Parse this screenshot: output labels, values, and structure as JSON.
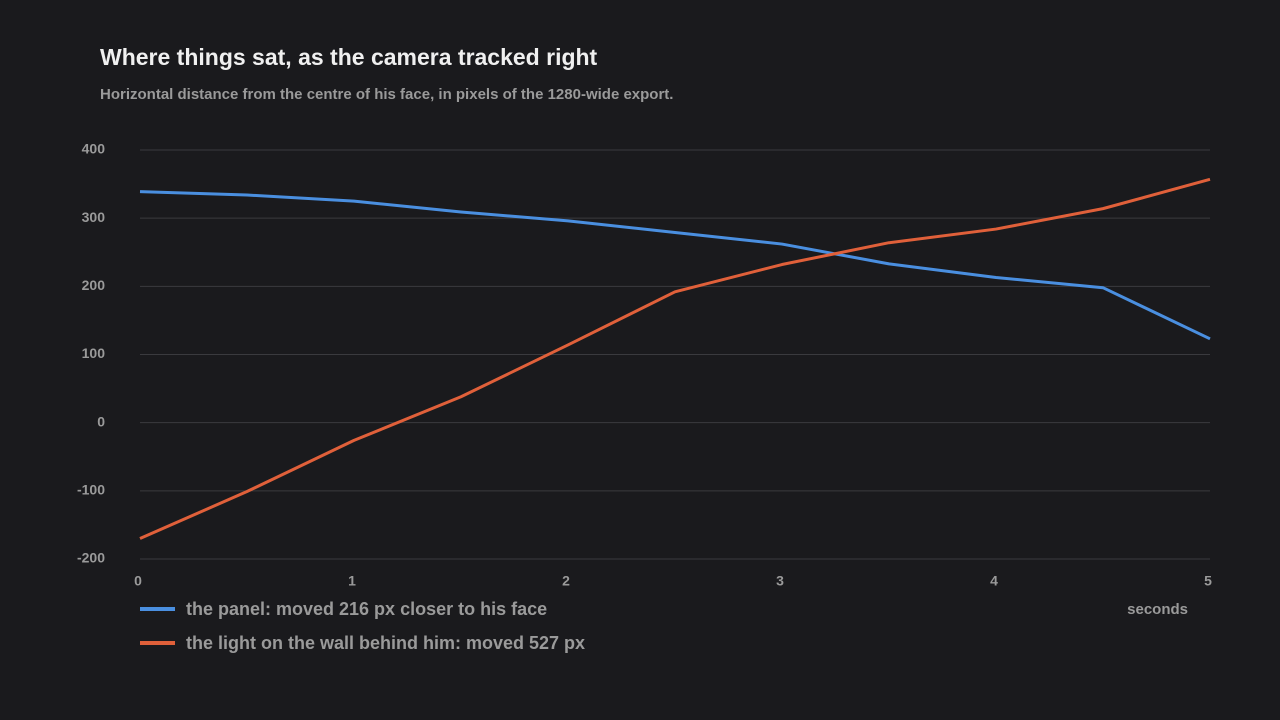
{
  "chart_data": {
    "type": "line",
    "title": "Where things sat, as the camera tracked right",
    "subtitle": "Horizontal distance from the centre of his face, in pixels of the 1280-wide export.",
    "x_label": "seconds",
    "x": [
      0,
      0.5,
      1,
      1.5,
      2,
      2.5,
      3,
      3.5,
      4,
      4.5,
      5
    ],
    "series": [
      {
        "name": "the panel: moved 216 px closer to his face",
        "color": "#4a8fe0",
        "values": [
          339,
          334,
          325,
          309,
          296,
          279,
          262,
          233,
          213,
          198,
          123
        ]
      },
      {
        "name": "the light on the wall behind him: moved 527 px",
        "color": "#e0603a",
        "values": [
          -170,
          -101,
          -26,
          38,
          114,
          192,
          232,
          264,
          284,
          314,
          357
        ]
      }
    ],
    "xlim": [
      0,
      5
    ],
    "xticks": [
      0,
      1,
      2,
      3,
      4,
      5
    ],
    "ylim": [
      -200,
      400
    ],
    "yticks": [
      -200,
      -100,
      0,
      100,
      200,
      300,
      400
    ],
    "grid": true,
    "legend": "bottom"
  }
}
